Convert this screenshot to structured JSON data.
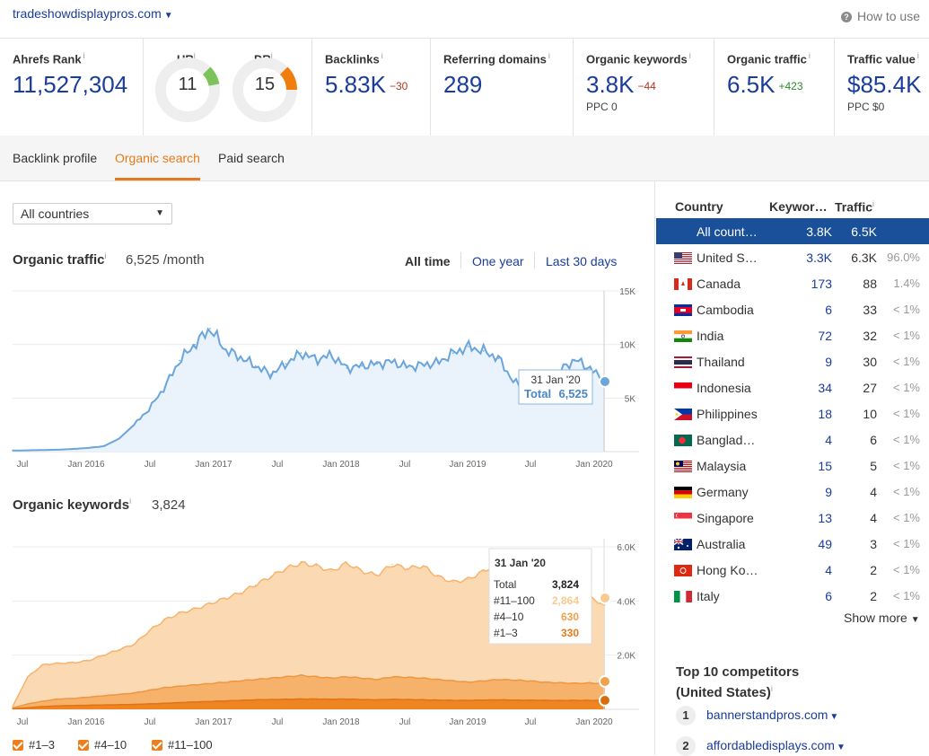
{
  "header": {
    "domain": "tradeshowdisplaypros.com",
    "how_to_use": "How to use"
  },
  "metrics": {
    "ahrefs_rank": {
      "label": "Ahrefs Rank",
      "value": "11,527,304"
    },
    "ur": {
      "label": "UR",
      "value": "11"
    },
    "dr": {
      "label": "DR",
      "value": "15"
    },
    "backlinks": {
      "label": "Backlinks",
      "value": "5.83K",
      "delta": "−30"
    },
    "referring_domains": {
      "label": "Referring domains",
      "value": "289"
    },
    "organic_keywords": {
      "label": "Organic keywords",
      "value": "3.8K",
      "delta": "−44",
      "sub": "PPC 0"
    },
    "organic_traffic": {
      "label": "Organic traffic",
      "value": "6.5K",
      "delta": "+423"
    },
    "traffic_value": {
      "label": "Traffic value",
      "value": "$85.4K",
      "sub": "PPC $0"
    }
  },
  "tabs": [
    "Backlink profile",
    "Organic search",
    "Paid search"
  ],
  "country_select": {
    "value": "All countries"
  },
  "organic_traffic_section": {
    "title": "Organic traffic",
    "value": "6,525 /month",
    "periods": [
      "All time",
      "One year",
      "Last 30 days"
    ],
    "tooltip": {
      "date": "31 Jan '20",
      "total_label": "Total",
      "total": "6,525"
    }
  },
  "organic_keywords_section": {
    "title": "Organic keywords",
    "value": "3,824",
    "tooltip": {
      "date": "31 Jan '20",
      "rows": [
        {
          "label": "Total",
          "value": "3,824"
        },
        {
          "label": "#11–100",
          "value": "2,864"
        },
        {
          "label": "#4–10",
          "value": "630"
        },
        {
          "label": "#1–3",
          "value": "330"
        }
      ]
    },
    "legend": [
      "#1–3",
      "#4–10",
      "#11–100"
    ]
  },
  "chart_data": [
    {
      "type": "area",
      "x_ticks": [
        "Jul",
        "Jan 2016",
        "Jul",
        "Jan 2017",
        "Jul",
        "Jan 2018",
        "Jul",
        "Jan 2019",
        "Jul",
        "Jan 2020"
      ],
      "y_ticks": [
        "5K",
        "10K",
        "15K"
      ],
      "ylim": [
        0,
        15000
      ],
      "series": [
        {
          "values": [
            100,
            120,
            150,
            180,
            250,
            350,
            500,
            1200,
            2500,
            4000,
            6000,
            8500,
            10000,
            11500,
            9500,
            8800,
            8000,
            7200,
            8200,
            9200,
            8600,
            9000,
            7800,
            8000,
            8200,
            8400,
            7900,
            8100,
            8300,
            9200,
            9800,
            9400,
            8700,
            6500,
            5600,
            6200,
            7500,
            8600,
            7800,
            6525
          ]
        }
      ]
    },
    {
      "type": "area",
      "x_ticks": [
        "Jul",
        "Jan 2016",
        "Jul",
        "Jan 2017",
        "Jul",
        "Jan 2018",
        "Jul",
        "Jan 2019",
        "Jul",
        "Jan 2020"
      ],
      "y_ticks": [
        "2.0K",
        "4.0K",
        "6.0K"
      ],
      "ylim": [
        0,
        6000
      ],
      "series": [
        {
          "name": "#11–100",
          "values": [
            100,
            1200,
            1650,
            1700,
            1720,
            1800,
            2000,
            2200,
            2400,
            2900,
            3300,
            3550,
            3700,
            3900,
            4100,
            4300,
            4600,
            4900,
            5200,
            5400,
            5300,
            5100,
            5400,
            5100,
            4950,
            5350,
            5200,
            5300,
            4900,
            4700,
            4800,
            5100,
            5400,
            5300,
            5000,
            4700,
            4350,
            4050,
            4150,
            3824
          ]
        },
        {
          "name": "#4–10",
          "values": [
            50,
            200,
            300,
            380,
            400,
            450,
            500,
            550,
            600,
            700,
            800,
            850,
            900,
            950,
            1000,
            1050,
            1100,
            1150,
            1200,
            1250,
            1200,
            1150,
            1200,
            1150,
            1100,
            1200,
            1180,
            1150,
            1100,
            1050,
            1000,
            1050,
            1100,
            1080,
            1050,
            1000,
            980,
            960,
            970,
            960
          ]
        },
        {
          "name": "#1–3",
          "values": [
            20,
            60,
            100,
            130,
            140,
            150,
            160,
            170,
            180,
            200,
            220,
            250,
            270,
            290,
            310,
            330,
            350,
            360,
            370,
            380,
            380,
            370,
            380,
            360,
            350,
            370,
            360,
            350,
            340,
            330,
            330,
            340,
            350,
            340,
            335,
            330,
            325,
            330,
            330,
            330
          ]
        }
      ]
    }
  ],
  "countries": {
    "headers": [
      "Country",
      "Keywor…",
      "Traffic"
    ],
    "rows": [
      {
        "name": "All count…",
        "keywords": "3.8K",
        "traffic": "6.5K",
        "pct": "",
        "flag": "none"
      },
      {
        "name": "United S…",
        "keywords": "3.3K",
        "traffic": "6.3K",
        "pct": "96.0%",
        "flag": "us"
      },
      {
        "name": "Canada",
        "keywords": "173",
        "traffic": "88",
        "pct": "1.4%",
        "flag": "ca"
      },
      {
        "name": "Cambodia",
        "keywords": "6",
        "traffic": "33",
        "pct": "< 1%",
        "flag": "kh"
      },
      {
        "name": "India",
        "keywords": "72",
        "traffic": "32",
        "pct": "< 1%",
        "flag": "in"
      },
      {
        "name": "Thailand",
        "keywords": "9",
        "traffic": "30",
        "pct": "< 1%",
        "flag": "th"
      },
      {
        "name": "Indonesia",
        "keywords": "34",
        "traffic": "27",
        "pct": "< 1%",
        "flag": "id"
      },
      {
        "name": "Philippines",
        "keywords": "18",
        "traffic": "10",
        "pct": "< 1%",
        "flag": "ph"
      },
      {
        "name": "Banglad…",
        "keywords": "4",
        "traffic": "6",
        "pct": "< 1%",
        "flag": "bd"
      },
      {
        "name": "Malaysia",
        "keywords": "15",
        "traffic": "5",
        "pct": "< 1%",
        "flag": "my"
      },
      {
        "name": "Germany",
        "keywords": "9",
        "traffic": "4",
        "pct": "< 1%",
        "flag": "de"
      },
      {
        "name": "Singapore",
        "keywords": "13",
        "traffic": "4",
        "pct": "< 1%",
        "flag": "sg"
      },
      {
        "name": "Australia",
        "keywords": "49",
        "traffic": "3",
        "pct": "< 1%",
        "flag": "au"
      },
      {
        "name": "Hong Ko…",
        "keywords": "4",
        "traffic": "2",
        "pct": "< 1%",
        "flag": "hk"
      },
      {
        "name": "Italy",
        "keywords": "6",
        "traffic": "2",
        "pct": "< 1%",
        "flag": "it"
      }
    ],
    "show_more": "Show more"
  },
  "competitors": {
    "title_line1": "Top 10 competitors",
    "title_line2": "(United States)",
    "items": [
      {
        "num": "1",
        "domain": "bannerstandpros.com"
      },
      {
        "num": "2",
        "domain": "affordabledisplays.com"
      }
    ]
  },
  "colors": {
    "accent": "#e8791a",
    "link": "#1a3d9c",
    "traffic_line": "#6aa6dc",
    "kw_light": "#f9c98f",
    "kw_mid": "#f3a04b",
    "kw_dark": "#e8791a",
    "selected_row": "#1a4f99"
  }
}
